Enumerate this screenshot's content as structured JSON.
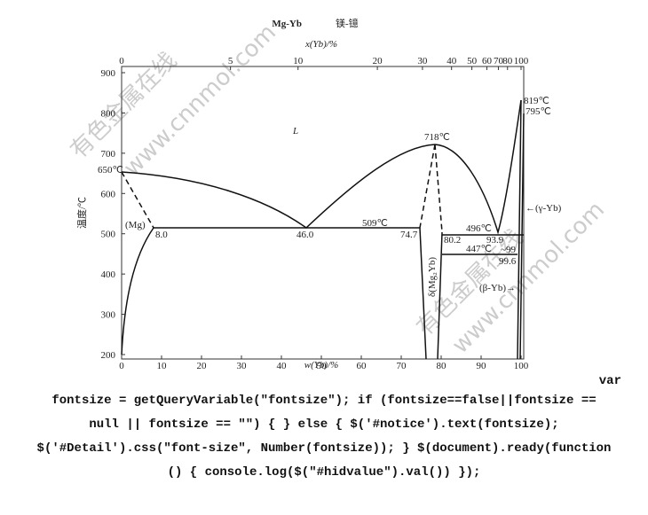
{
  "diagram": {
    "title": "Mg-Yb",
    "title_cn": "镁-镱",
    "x_top_label": "x(Yb)/%",
    "x_bottom_label": "w(Yb)/%",
    "y_label": "温度/℃",
    "x_bottom_ticks": [
      0,
      10,
      20,
      30,
      40,
      50,
      60,
      70,
      80,
      90,
      100
    ],
    "x_top_ticks": [
      0,
      5,
      10,
      20,
      30,
      40,
      50,
      60,
      70,
      80,
      100
    ],
    "y_ticks": [
      200,
      300,
      400,
      500,
      600,
      700,
      800,
      900
    ],
    "left_element": "Mg",
    "right_element": "Yb",
    "annotations": [
      "650℃",
      "L",
      "718℃",
      "509℃",
      "496℃",
      "447℃",
      "819℃",
      "795℃",
      "(Mg)",
      "8.0",
      "46.0",
      "74.7",
      "80.2",
      "93.9",
      "~99",
      "99.6",
      "δ(Mg₂Yb)",
      "←(γ-Yb)",
      "(β-Yb)→"
    ]
  },
  "watermarks": [
    "有色金属在线",
    "www.cnnmol.com",
    "有色金属在线",
    "www.cnnmol.com"
  ],
  "code_lines": [
    "var",
    "fontsize = getQueryVariable(\"fontsize\"); if (fontsize==false||fontsize ==",
    "null || fontsize == \"\") { } else { $('#notice').text(fontsize);",
    "$('#Detail').css(\"font-size\", Number(fontsize)); } $(document).ready(function",
    "() { console.log($(\"#hidvalue\").val()) });"
  ]
}
